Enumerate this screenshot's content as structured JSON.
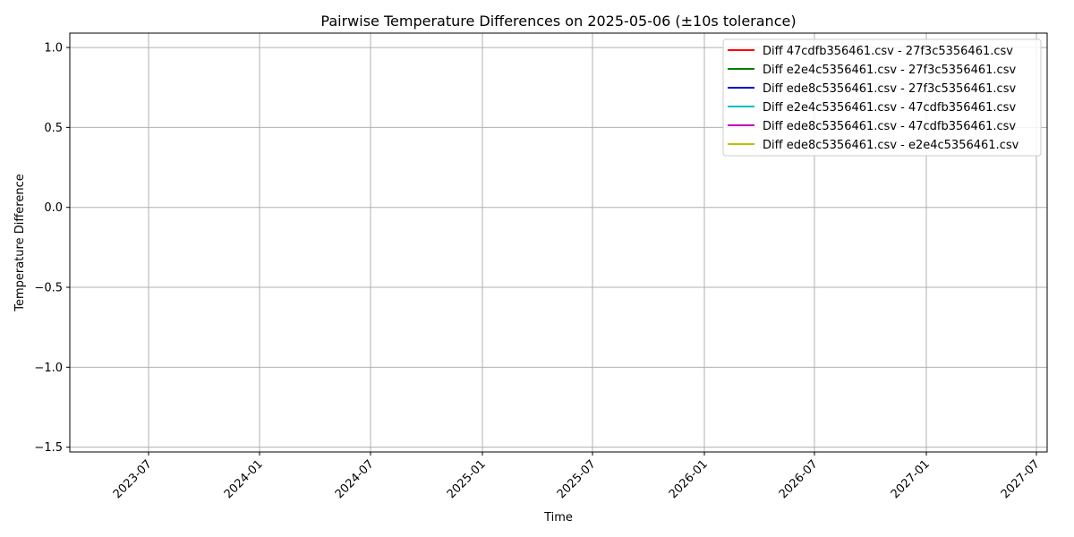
{
  "chart_data": {
    "type": "line",
    "title": "Pairwise Temperature Differences on 2025-05-06 (±10s tolerance)",
    "xlabel": "Time",
    "ylabel": "Temperature Difference",
    "x_ticks": [
      "2023-07",
      "2024-01",
      "2024-07",
      "2025-01",
      "2025-07",
      "2026-01",
      "2026-07",
      "2027-01",
      "2027-07"
    ],
    "y_ticks": [
      "1.0",
      "0.5",
      "0.0",
      "−0.5",
      "−1.0",
      "−1.5"
    ],
    "y_tick_values": [
      1.0,
      0.5,
      0.0,
      -0.5,
      -1.0,
      -1.5
    ],
    "ylim": [
      -1.53,
      1.09
    ],
    "grid": true,
    "legend_position": "top-right",
    "series": [
      {
        "name": "Diff 47cdfb356461.csv - 27f3c5356461.csv",
        "color": "#ff0000",
        "values": []
      },
      {
        "name": "Diff e2e4c5356461.csv - 27f3c5356461.csv",
        "color": "#008000",
        "values": []
      },
      {
        "name": "Diff ede8c5356461.csv - 27f3c5356461.csv",
        "color": "#0000cc",
        "values": []
      },
      {
        "name": "Diff e2e4c5356461.csv - 47cdfb356461.csv",
        "color": "#00bfbf",
        "values": []
      },
      {
        "name": "Diff ede8c5356461.csv - 47cdfb356461.csv",
        "color": "#bf00bf",
        "values": []
      },
      {
        "name": "Diff ede8c5356461.csv - e2e4c5356461.csv",
        "color": "#bfbf00",
        "values": []
      }
    ]
  }
}
